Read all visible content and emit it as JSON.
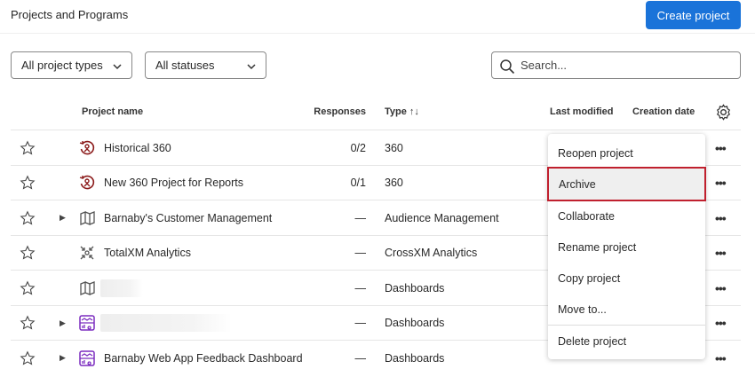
{
  "header": {
    "title": "Projects and Programs",
    "create_label": "Create project"
  },
  "filters": {
    "types": "All project types",
    "statuses": "All statuses",
    "search_placeholder": "Search..."
  },
  "columns": {
    "name": "Project name",
    "responses": "Responses",
    "type": "Type",
    "last_modified": "Last modified",
    "creation_date": "Creation date"
  },
  "rows": [
    {
      "name": "Historical 360",
      "responses": "0/2",
      "type": "360",
      "icon": "360-icon",
      "expandable": false
    },
    {
      "name": "New 360 Project for Reports",
      "responses": "0/1",
      "type": "360",
      "icon": "360-icon",
      "expandable": false
    },
    {
      "name": "Barnaby's Customer Management",
      "responses": "—",
      "type": "Audience Management",
      "icon": "audience-icon",
      "expandable": true
    },
    {
      "name": "TotalXM Analytics",
      "responses": "—",
      "type": "CrossXM Analytics",
      "icon": "crossxm-icon",
      "expandable": false
    },
    {
      "name": "",
      "responses": "—",
      "type": "Dashboards",
      "icon": "audience-icon",
      "expandable": false,
      "redacted": true
    },
    {
      "name": "",
      "responses": "—",
      "type": "Dashboards",
      "icon": "dashboard-icon",
      "expandable": true,
      "redacted": true
    },
    {
      "name": "Barnaby Web App Feedback Dashboard",
      "responses": "—",
      "type": "Dashboards",
      "icon": "dashboard-icon",
      "expandable": true
    }
  ],
  "menu": {
    "items": [
      "Reopen project",
      "Archive",
      "Collaborate",
      "Rename project",
      "Copy project",
      "Move to...",
      "Delete project"
    ],
    "highlighted": "Archive"
  },
  "colors": {
    "accent": "#1a73d9",
    "highlight_border": "#c0202e",
    "icon_360": "#8b1a1a",
    "icon_dashboard": "#7b2cbf"
  }
}
